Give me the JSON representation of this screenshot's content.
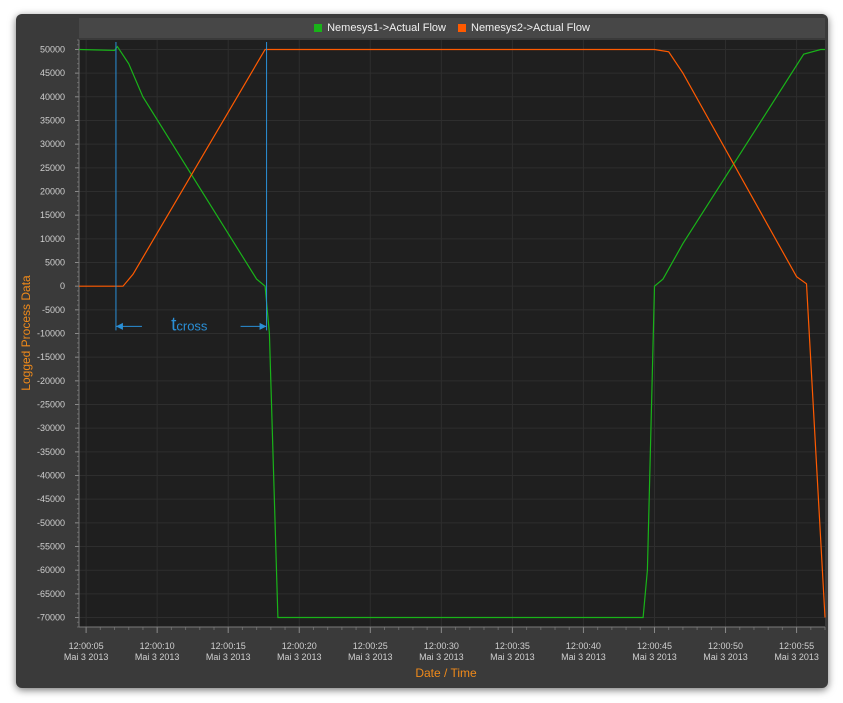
{
  "chart_data": {
    "type": "line",
    "xlabel": "Date / Time",
    "ylabel": "Logged Process Data",
    "ylim": [
      -72000,
      52000
    ],
    "xlim_seconds": [
      4.5,
      57.0
    ],
    "y_ticks": [
      50000,
      45000,
      40000,
      35000,
      30000,
      25000,
      20000,
      15000,
      10000,
      5000,
      0,
      -5000,
      -10000,
      -15000,
      -20000,
      -25000,
      -30000,
      -35000,
      -40000,
      -45000,
      -50000,
      -55000,
      -60000,
      -65000,
      -70000
    ],
    "x_ticks": [
      {
        "time": "12:00:05",
        "date": "Mai 3 2013"
      },
      {
        "time": "12:00:10",
        "date": "Mai 3 2013"
      },
      {
        "time": "12:00:15",
        "date": "Mai 3 2013"
      },
      {
        "time": "12:00:20",
        "date": "Mai 3 2013"
      },
      {
        "time": "12:00:25",
        "date": "Mai 3 2013"
      },
      {
        "time": "12:00:30",
        "date": "Mai 3 2013"
      },
      {
        "time": "12:00:35",
        "date": "Mai 3 2013"
      },
      {
        "time": "12:00:40",
        "date": "Mai 3 2013"
      },
      {
        "time": "12:00:45",
        "date": "Mai 3 2013"
      },
      {
        "time": "12:00:50",
        "date": "Mai 3 2013"
      },
      {
        "time": "12:00:55",
        "date": "Mai 3 2013"
      }
    ],
    "x_tick_seconds": [
      5,
      10,
      15,
      20,
      25,
      30,
      35,
      40,
      45,
      50,
      55
    ],
    "grid": true,
    "legend_position": "top",
    "series": [
      {
        "name": "Nemesys1->Actual Flow",
        "color": "#19b319",
        "points": [
          [
            4.5,
            50000
          ],
          [
            7.0,
            49800
          ],
          [
            7.2,
            50600
          ],
          [
            8.0,
            47000
          ],
          [
            9.0,
            40000
          ],
          [
            17.0,
            1500
          ],
          [
            17.6,
            0
          ],
          [
            17.9,
            -10000
          ],
          [
            18.5,
            -70000
          ],
          [
            44.2,
            -70000
          ],
          [
            44.5,
            -60000
          ],
          [
            45.0,
            0
          ],
          [
            45.6,
            1500
          ],
          [
            47.0,
            9000
          ],
          [
            55.5,
            49000
          ],
          [
            56.7,
            50000
          ],
          [
            57.0,
            50000
          ]
        ]
      },
      {
        "name": "Nemesys2->Actual Flow",
        "color": "#ff5a00",
        "points": [
          [
            4.5,
            0
          ],
          [
            7.6,
            0
          ],
          [
            8.3,
            2500
          ],
          [
            17.3,
            48500
          ],
          [
            17.6,
            50000
          ],
          [
            45.0,
            50000
          ],
          [
            46.0,
            49500
          ],
          [
            47.0,
            45000
          ],
          [
            55.0,
            2000
          ],
          [
            55.7,
            500
          ],
          [
            57.0,
            -70000
          ]
        ]
      }
    ],
    "annotation": {
      "label_main": "t",
      "label_sub": "cross",
      "x_start": 7.1,
      "x_end": 17.7,
      "y_level": -8500,
      "color": "#2a8fd6"
    }
  }
}
